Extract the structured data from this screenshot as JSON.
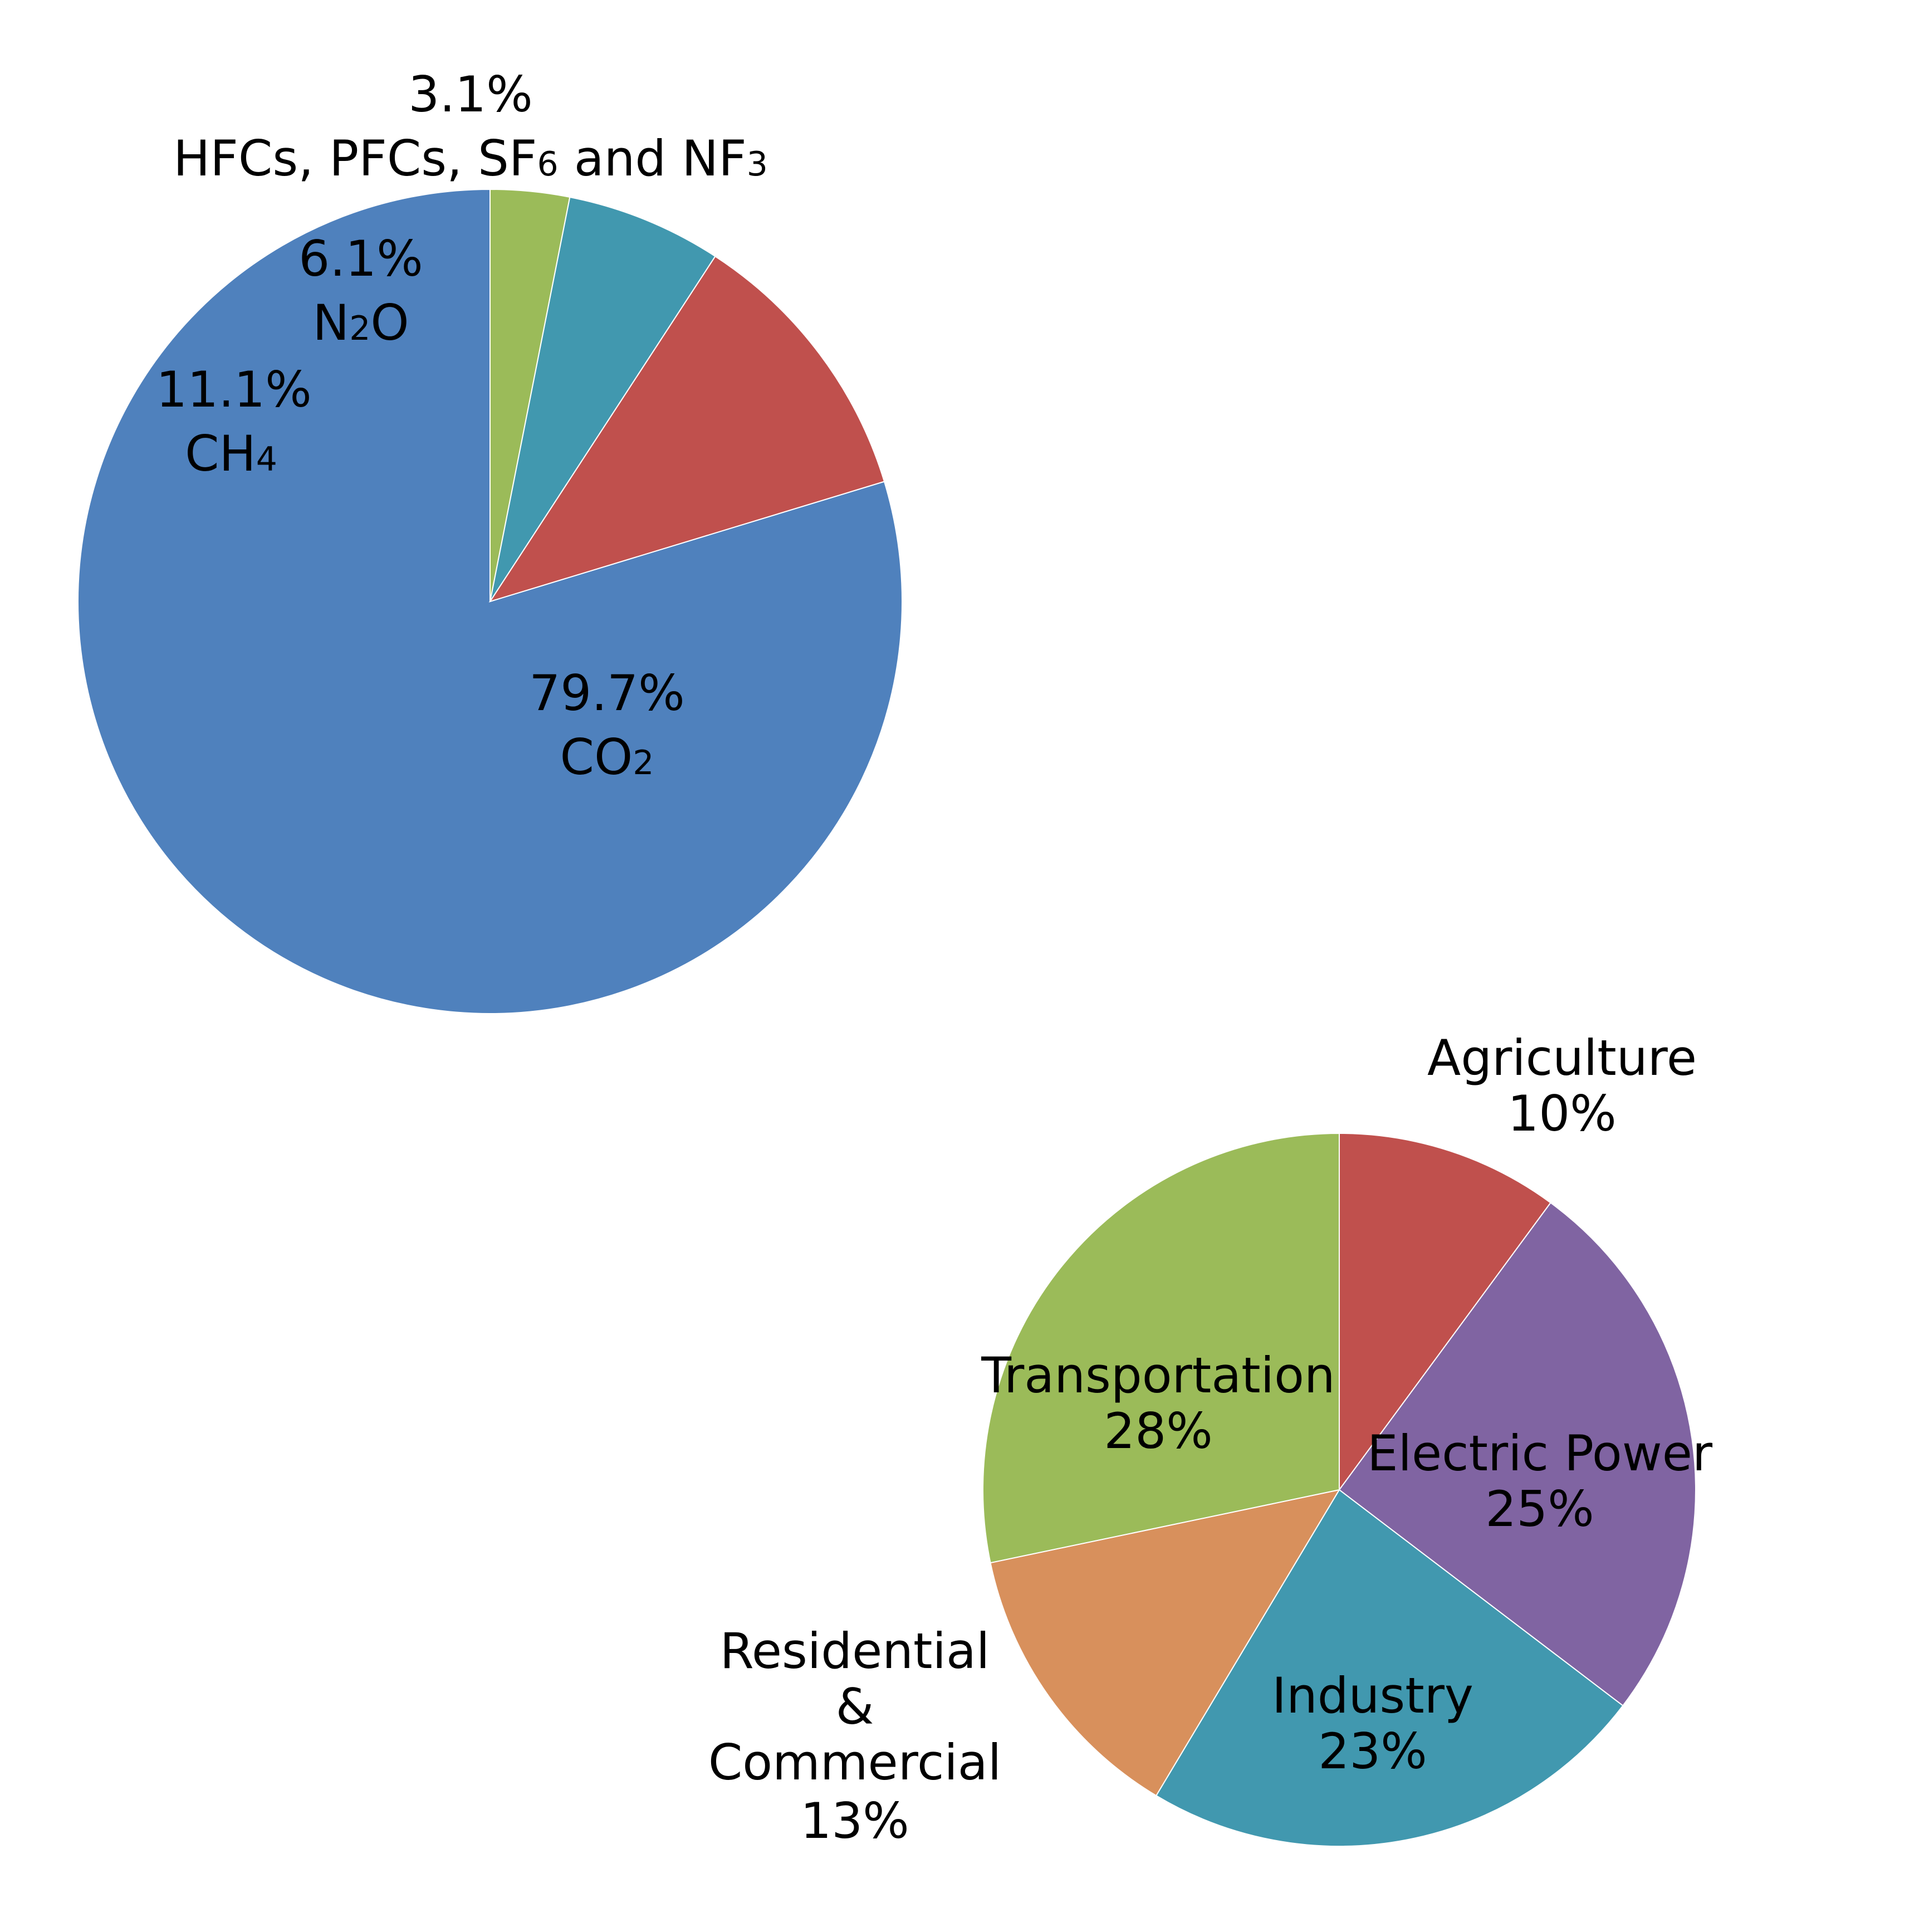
{
  "chart_data": [
    {
      "type": "pie",
      "title": "",
      "slices": [
        {
          "name": "CO₂",
          "value": 79.7,
          "percent_label": "79.7%",
          "name_main": "CO",
          "name_sub": "2",
          "name_tail": "",
          "color": "#4F81BD"
        },
        {
          "name": "CH₄",
          "value": 11.1,
          "percent_label": "11.1%",
          "name_main": "CH",
          "name_sub": "4",
          "name_tail": "",
          "color": "#C0504D"
        },
        {
          "name": "N₂O",
          "value": 6.1,
          "percent_label": "6.1%",
          "name_main": "N",
          "name_sub": "2",
          "name_tail": "O",
          "color": "#4198AF"
        },
        {
          "name": "HFCs, PFCs, SF₆ and NF₃",
          "value": 3.1,
          "percent_label": "3.1%",
          "name_main": "HFCs, PFCs, SF",
          "name_sub": "6",
          "name_tail": " and NF",
          "name_sub2": "3",
          "color": "#9BBB59"
        }
      ],
      "direction": "counterclockwise",
      "start": "top"
    },
    {
      "type": "pie",
      "title": "",
      "slices": [
        {
          "name": "Agriculture",
          "value": 10,
          "percent_label": "10%",
          "color": "#C0504D"
        },
        {
          "name": "Electric Power",
          "value": 25,
          "percent_label": "25%",
          "color": "#8064A2"
        },
        {
          "name": "Industry",
          "value": 23,
          "percent_label": "23%",
          "color": "#4198AF"
        },
        {
          "name": "Residential & Commercial",
          "value": 13,
          "percent_label": "13%",
          "name_lines": [
            "Residential",
            "&",
            "Commercial"
          ],
          "color": "#D8905C"
        },
        {
          "name": "Transportation",
          "value": 28,
          "percent_label": "28%",
          "color": "#9BBB59"
        }
      ],
      "direction": "clockwise",
      "start": "top"
    }
  ]
}
